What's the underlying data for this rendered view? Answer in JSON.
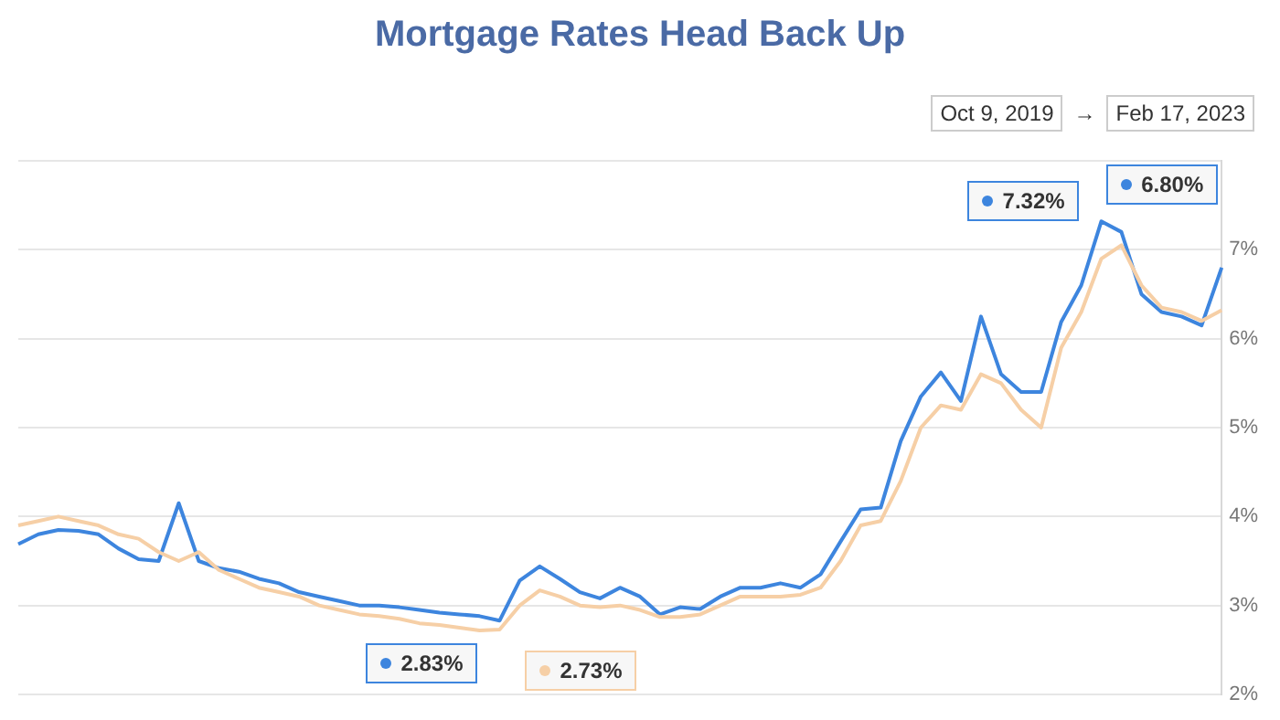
{
  "chart_data": {
    "type": "line",
    "title": "Mortgage Rates Head Back Up",
    "categories": [
      null,
      null,
      null,
      null,
      null,
      null,
      null,
      null,
      null,
      null,
      null,
      null,
      null,
      null,
      null,
      null,
      null,
      null,
      null,
      null,
      null,
      null,
      null,
      null,
      null,
      null,
      null,
      null,
      null,
      null,
      null,
      null,
      null,
      null,
      null,
      null,
      null,
      null,
      null,
      null,
      null,
      null,
      null,
      null,
      null,
      null,
      null,
      null,
      null,
      null,
      null,
      null,
      null,
      null,
      null,
      null,
      null,
      null,
      null,
      null,
      null
    ],
    "ylim": [
      2,
      8
    ],
    "yticks": [
      {
        "value": 2,
        "label": "2%"
      },
      {
        "value": 3,
        "label": "3%"
      },
      {
        "value": 4,
        "label": "4%"
      },
      {
        "value": 5,
        "label": "5%"
      },
      {
        "value": 6,
        "label": "6%"
      },
      {
        "value": 7,
        "label": "7%"
      },
      {
        "value": 8,
        "label": null
      }
    ],
    "tick_labels": "y",
    "grid": "y",
    "series": [
      {
        "color": "#f6cfa6",
        "values": [
          3.9,
          3.95,
          4.0,
          3.95,
          3.9,
          3.8,
          3.75,
          3.6,
          3.5,
          3.6,
          3.4,
          3.3,
          3.2,
          3.15,
          3.1,
          3.0,
          2.95,
          2.9,
          2.88,
          2.85,
          2.8,
          2.78,
          2.75,
          2.72,
          2.73,
          3.0,
          3.17,
          3.1,
          3.0,
          2.98,
          3.0,
          2.95,
          2.87,
          2.87,
          2.9,
          3.0,
          3.1,
          3.1,
          3.1,
          3.12,
          3.2,
          3.5,
          3.9,
          3.95,
          4.4,
          5.0,
          5.25,
          5.2,
          5.6,
          5.5,
          5.2,
          5.0,
          5.9,
          6.3,
          6.9,
          7.05,
          6.6,
          6.35,
          6.3,
          6.2,
          6.32
        ]
      },
      {
        "color": "#3d85de",
        "values": [
          3.69,
          3.8,
          3.85,
          3.84,
          3.8,
          3.64,
          3.52,
          3.5,
          4.15,
          3.5,
          3.42,
          3.38,
          3.3,
          3.25,
          3.15,
          3.1,
          3.05,
          3.0,
          3.0,
          2.98,
          2.95,
          2.92,
          2.9,
          2.88,
          2.83,
          3.28,
          3.44,
          3.3,
          3.15,
          3.08,
          3.2,
          3.1,
          2.9,
          2.98,
          2.96,
          3.1,
          3.2,
          3.2,
          3.25,
          3.2,
          3.35,
          3.72,
          4.08,
          4.1,
          4.85,
          5.35,
          5.62,
          5.3,
          6.25,
          5.6,
          5.4,
          5.4,
          6.19,
          6.6,
          7.32,
          7.2,
          6.5,
          6.3,
          6.25,
          6.15,
          6.8
        ]
      }
    ],
    "annotations": [
      "2.83%",
      "2.73%",
      "7.32%",
      "6.80%",
      "Oct 9, 2019",
      "→",
      "Feb 17, 2023"
    ]
  }
}
